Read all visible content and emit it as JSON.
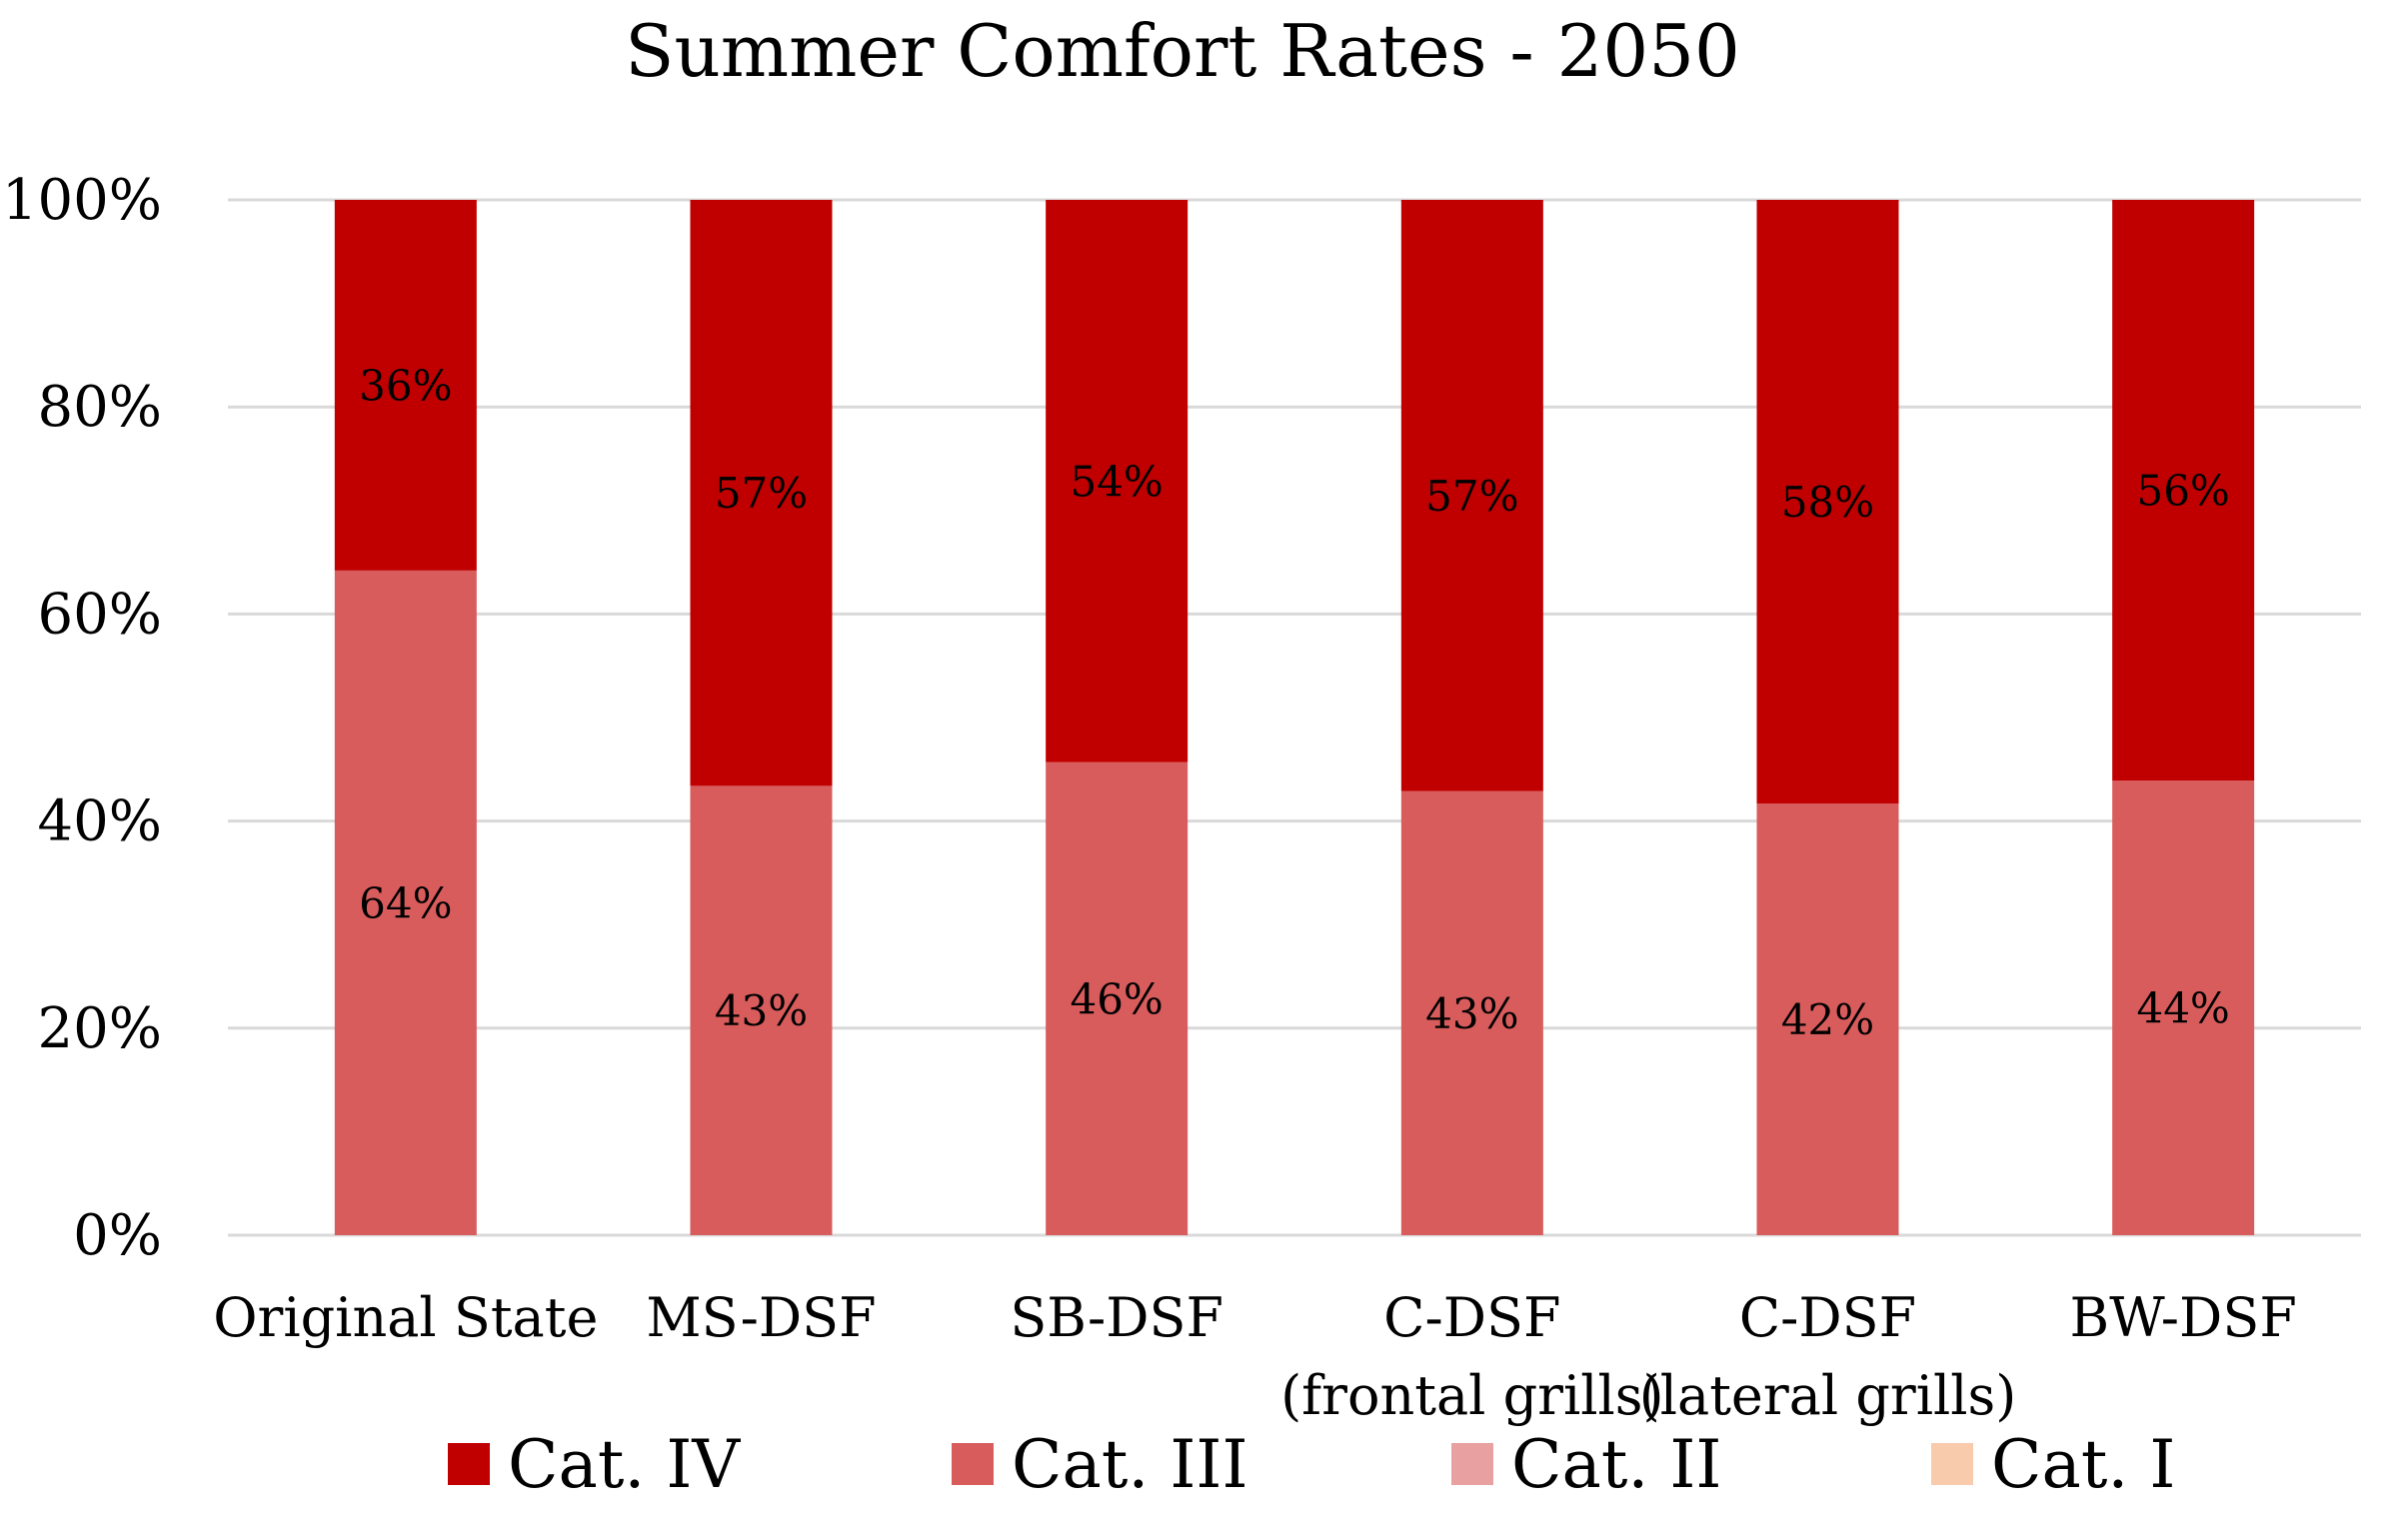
{
  "chart_data": {
    "type": "bar",
    "stacked": true,
    "percent_stacked": true,
    "title": "Summer Comfort Rates - 2050",
    "xlabel": "",
    "ylabel": "",
    "ylim": [
      0,
      100
    ],
    "yticks": [
      "0%",
      "20%",
      "40%",
      "60%",
      "80%",
      "100%"
    ],
    "yticks_values": [
      0,
      20,
      40,
      60,
      80,
      100
    ],
    "grid": true,
    "legend_position": "bottom",
    "categories": [
      [
        "Original State"
      ],
      [
        "MS-DSF"
      ],
      [
        "SB-DSF"
      ],
      [
        "C-DSF",
        "(frontal grills)"
      ],
      [
        "C-DSF",
        "(lateral grills)"
      ],
      [
        "BW-DSF"
      ]
    ],
    "series": [
      {
        "name": "Cat. I",
        "color": "#f8cbad",
        "values": [
          0,
          0,
          0,
          0,
          0,
          0
        ],
        "labels": [
          "",
          "",
          "",
          "",
          "",
          ""
        ]
      },
      {
        "name": "Cat. II",
        "color": "#e8a0a0",
        "values": [
          0,
          0,
          0,
          0,
          0,
          0
        ],
        "labels": [
          "",
          "",
          "",
          "",
          "",
          ""
        ]
      },
      {
        "name": "Cat. III",
        "color": "#d95c5c",
        "values": [
          64.2,
          43.4,
          45.7,
          42.9,
          41.7,
          43.9
        ],
        "labels": [
          "64%",
          "43%",
          "46%",
          "43%",
          "42%",
          "44%"
        ]
      },
      {
        "name": "Cat. IV",
        "color": "#c00000",
        "values": [
          35.8,
          56.6,
          54.3,
          57.1,
          58.3,
          56.1
        ],
        "labels": [
          "36%",
          "57%",
          "54%",
          "57%",
          "58%",
          "56%"
        ]
      }
    ],
    "legend_order": [
      "Cat. IV",
      "Cat. III",
      "Cat. II",
      "Cat. I"
    ]
  }
}
